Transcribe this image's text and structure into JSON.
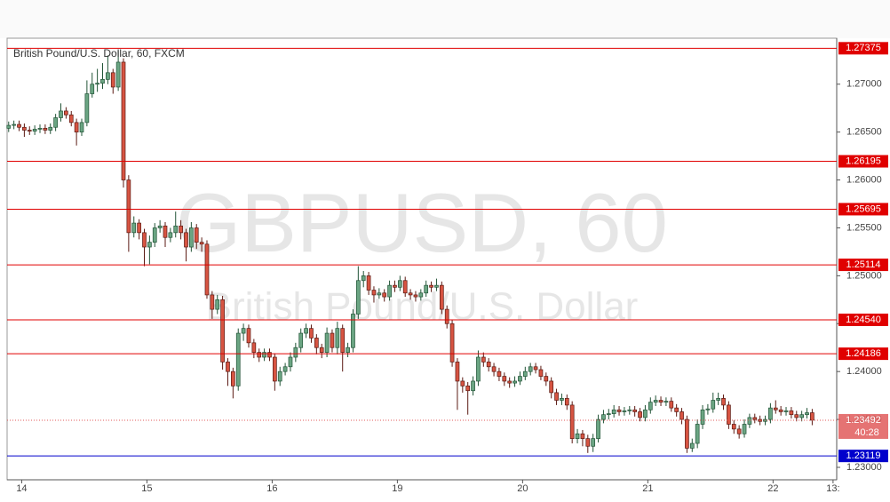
{
  "chart_data": {
    "type": "candlestick",
    "title": "British Pound/U.S. Dollar, 60, FXCM",
    "watermark": "GBPUSD, 60",
    "watermark_subtitle": "British Pound/U.S. Dollar",
    "ylim": [
      1.2287,
      1.2748
    ],
    "yticks": [
      {
        "value": 1.23,
        "label": "1.23000"
      },
      {
        "value": 1.235,
        "label": "1.23500"
      },
      {
        "value": 1.24,
        "label": "1.24000"
      },
      {
        "value": 1.245,
        "label": "1.24500"
      },
      {
        "value": 1.25,
        "label": "1.25000"
      },
      {
        "value": 1.255,
        "label": "1.25500"
      },
      {
        "value": 1.26,
        "label": "1.26000"
      },
      {
        "value": 1.265,
        "label": "1.26500"
      },
      {
        "value": 1.27,
        "label": "1.27000"
      }
    ],
    "xlim": [
      -0.3,
      158.7
    ],
    "xticks": [
      {
        "value": 2.5,
        "label": "14"
      },
      {
        "value": 26.5,
        "label": "15"
      },
      {
        "value": 50.5,
        "label": "16"
      },
      {
        "value": 74.5,
        "label": "19"
      },
      {
        "value": 98.5,
        "label": "20"
      },
      {
        "value": 122.5,
        "label": "21"
      },
      {
        "value": 146.5,
        "label": "22"
      },
      {
        "value": 158,
        "label": "13:"
      }
    ],
    "up_color": "#6ba583",
    "down_color": "#d75442",
    "levels": [
      {
        "value": 1.27375,
        "color": "#e00000"
      },
      {
        "value": 1.26195,
        "color": "#e00000"
      },
      {
        "value": 1.25695,
        "color": "#e00000"
      },
      {
        "value": 1.25114,
        "color": "#e00000"
      },
      {
        "value": 1.2454,
        "label": "1.24540",
        "color": "#e00000"
      },
      {
        "value": 1.24186,
        "color": "#e00000"
      },
      {
        "value": 1.23119,
        "color": "#0000cc"
      }
    ],
    "last": {
      "value": 1.23492,
      "countdown": "40:28",
      "color": "#e05a5a"
    },
    "open": [
      1.2654,
      1.2657,
      1.2658,
      1.2655,
      1.2652,
      1.2651,
      1.2653,
      1.2654,
      1.2652,
      1.2655,
      1.2665,
      1.2672,
      1.2668,
      1.266,
      1.265,
      1.266,
      1.269,
      1.27,
      1.2701,
      1.2705,
      1.2712,
      1.2697,
      1.2723,
      1.26,
      1.2545,
      1.2555,
      1.2545,
      1.253,
      1.2535,
      1.255,
      1.2552,
      1.254,
      1.2545,
      1.2552,
      1.2545,
      1.253,
      1.255,
      1.2535,
      1.2533,
      1.248,
      1.2465,
      1.2475,
      1.241,
      1.24,
      1.2385,
      1.244,
      1.2445,
      1.243,
      1.242,
      1.2415,
      1.242,
      1.2415,
      1.239,
      1.24,
      1.2405,
      1.2415,
      1.2425,
      1.244,
      1.2445,
      1.2435,
      1.2425,
      1.242,
      1.244,
      1.2425,
      1.2445,
      1.242,
      1.2425,
      1.246,
      1.2495,
      1.25,
      1.2485,
      1.248,
      1.2482,
      1.2478,
      1.249,
      1.2488,
      1.2495,
      1.2482,
      1.248,
      1.2478,
      1.2482,
      1.249,
      1.2488,
      1.249,
      1.2465,
      1.245,
      1.241,
      1.239,
      1.2385,
      1.238,
      1.239,
      1.2415,
      1.241,
      1.2405,
      1.24,
      1.2395,
      1.239,
      1.2388,
      1.239,
      1.2395,
      1.24,
      1.2405,
      1.2402,
      1.2395,
      1.239,
      1.2378,
      1.237,
      1.2372,
      1.2365,
      1.233,
      1.2335,
      1.233,
      1.2322,
      1.233,
      1.235,
      1.2355,
      1.2356,
      1.236,
      1.2358,
      1.2359,
      1.236,
      1.2358,
      1.2352,
      1.236,
      1.2368,
      1.237,
      1.2368,
      1.2369,
      1.2362,
      1.2358,
      1.235,
      1.232,
      1.2325,
      1.2345,
      1.236,
      1.2361,
      1.237,
      1.2372,
      1.2365,
      1.2345,
      1.234,
      1.2335,
      1.2345,
      1.2352,
      1.235,
      1.2348,
      1.235,
      1.2362,
      1.236,
      1.2358,
      1.2359,
      1.2355,
      1.2352,
      1.2355,
      1.2357
    ],
    "high": [
      1.2661,
      1.2662,
      1.2662,
      1.2659,
      1.2656,
      1.2657,
      1.2658,
      1.2658,
      1.2659,
      1.2669,
      1.268,
      1.2676,
      1.2672,
      1.2664,
      1.2664,
      1.2704,
      1.2712,
      1.2716,
      1.2722,
      1.273,
      1.2716,
      1.2735,
      1.2727,
      1.2605,
      1.2562,
      1.2559,
      1.2549,
      1.2542,
      1.2555,
      1.2558,
      1.2556,
      1.255,
      1.2567,
      1.2558,
      1.2549,
      1.2556,
      1.2554,
      1.254,
      1.2537,
      1.2484,
      1.248,
      1.2479,
      1.2414,
      1.2404,
      1.2445,
      1.245,
      1.2449,
      1.2434,
      1.2424,
      1.2424,
      1.2424,
      1.2419,
      1.2405,
      1.2409,
      1.242,
      1.243,
      1.2445,
      1.245,
      1.2449,
      1.2439,
      1.2429,
      1.2446,
      1.2444,
      1.2452,
      1.2449,
      1.243,
      1.2465,
      1.251,
      1.2505,
      1.2504,
      1.2489,
      1.2487,
      1.2486,
      1.2495,
      1.2495,
      1.25,
      1.2499,
      1.2486,
      1.2484,
      1.2486,
      1.2495,
      1.2494,
      1.2497,
      1.2494,
      1.2469,
      1.2454,
      1.2414,
      1.2394,
      1.2389,
      1.2395,
      1.2422,
      1.242,
      1.2414,
      1.2409,
      1.2404,
      1.2399,
      1.2394,
      1.2395,
      1.24,
      1.2405,
      1.2409,
      1.2409,
      1.2406,
      1.2399,
      1.2394,
      1.2382,
      1.2377,
      1.2376,
      1.2369,
      1.234,
      1.2339,
      1.2334,
      1.2335,
      1.2355,
      1.236,
      1.2361,
      1.2365,
      1.2364,
      1.2363,
      1.2364,
      1.2364,
      1.2362,
      1.2365,
      1.2373,
      1.2375,
      1.2374,
      1.2373,
      1.2373,
      1.2366,
      1.2362,
      1.2354,
      1.233,
      1.235,
      1.2365,
      1.2366,
      1.2378,
      1.2378,
      1.2376,
      1.2369,
      1.2349,
      1.2344,
      1.235,
      1.2356,
      1.2356,
      1.2354,
      1.2354,
      1.2367,
      1.237,
      1.2364,
      1.2363,
      1.2363,
      1.2359,
      1.2359,
      1.2362,
      1.2361
    ],
    "low": [
      1.265,
      1.2653,
      1.2651,
      1.2645,
      1.2647,
      1.2647,
      1.2649,
      1.2648,
      1.2648,
      1.2651,
      1.2661,
      1.2664,
      1.2656,
      1.2636,
      1.2646,
      1.2656,
      1.2686,
      1.2692,
      1.2695,
      1.27,
      1.269,
      1.2693,
      1.2592,
      1.2525,
      1.254,
      1.2538,
      1.251,
      1.2512,
      1.253,
      1.2545,
      1.253,
      1.2535,
      1.254,
      1.2538,
      1.2515,
      1.2525,
      1.2528,
      1.2525,
      1.2476,
      1.2455,
      1.246,
      1.2402,
      1.2385,
      1.2372,
      1.238,
      1.2432,
      1.2425,
      1.2414,
      1.241,
      1.2411,
      1.2411,
      1.238,
      1.2385,
      1.2396,
      1.24,
      1.241,
      1.242,
      1.2435,
      1.243,
      1.2418,
      1.2414,
      1.2415,
      1.242,
      1.2418,
      1.24,
      1.2415,
      1.242,
      1.2455,
      1.2488,
      1.248,
      1.2472,
      1.2476,
      1.2473,
      1.2474,
      1.2483,
      1.2484,
      1.2478,
      1.2475,
      1.2473,
      1.2474,
      1.2478,
      1.2483,
      1.2484,
      1.246,
      1.2445,
      1.2405,
      1.236,
      1.2378,
      1.2355,
      1.2375,
      1.2385,
      1.2405,
      1.24,
      1.2395,
      1.239,
      1.2385,
      1.2383,
      1.2384,
      1.2386,
      1.2391,
      1.2396,
      1.2398,
      1.2391,
      1.2385,
      1.2372,
      1.2365,
      1.2365,
      1.236,
      1.2325,
      1.2325,
      1.2322,
      1.2315,
      1.2316,
      1.2326,
      1.2346,
      1.235,
      1.2352,
      1.2354,
      1.2354,
      1.2355,
      1.2353,
      1.2348,
      1.2348,
      1.2356,
      1.2364,
      1.2364,
      1.2364,
      1.2358,
      1.2353,
      1.2345,
      1.2315,
      1.2316,
      1.232,
      1.234,
      1.2355,
      1.2357,
      1.2365,
      1.236,
      1.234,
      1.2335,
      1.233,
      1.2331,
      1.2341,
      1.2346,
      1.2344,
      1.2344,
      1.2346,
      1.2356,
      1.2354,
      1.2354,
      1.2351,
      1.2348,
      1.2348,
      1.2351,
      1.2344
    ],
    "close": [
      1.2657,
      1.2658,
      1.2655,
      1.2652,
      1.2651,
      1.2653,
      1.2654,
      1.2652,
      1.2655,
      1.2665,
      1.2672,
      1.2668,
      1.266,
      1.265,
      1.266,
      1.269,
      1.27,
      1.2701,
      1.2705,
      1.2712,
      1.2697,
      1.2723,
      1.26,
      1.2545,
      1.2555,
      1.2545,
      1.253,
      1.2535,
      1.255,
      1.2552,
      1.254,
      1.2545,
      1.2552,
      1.2545,
      1.253,
      1.255,
      1.2535,
      1.2533,
      1.248,
      1.2465,
      1.2475,
      1.241,
      1.24,
      1.2385,
      1.244,
      1.2445,
      1.243,
      1.242,
      1.2415,
      1.242,
      1.2415,
      1.239,
      1.24,
      1.2405,
      1.2415,
      1.2425,
      1.244,
      1.2445,
      1.2435,
      1.2425,
      1.242,
      1.244,
      1.2425,
      1.2445,
      1.242,
      1.2425,
      1.246,
      1.2495,
      1.25,
      1.2485,
      1.248,
      1.2482,
      1.2478,
      1.249,
      1.2488,
      1.2495,
      1.2482,
      1.248,
      1.2478,
      1.2482,
      1.249,
      1.2488,
      1.249,
      1.2465,
      1.245,
      1.241,
      1.239,
      1.2385,
      1.238,
      1.239,
      1.2415,
      1.241,
      1.2405,
      1.24,
      1.2395,
      1.239,
      1.2388,
      1.239,
      1.2395,
      1.24,
      1.2405,
      1.2402,
      1.2395,
      1.239,
      1.2378,
      1.237,
      1.2372,
      1.2365,
      1.233,
      1.2335,
      1.233,
      1.2322,
      1.233,
      1.235,
      1.2355,
      1.2356,
      1.236,
      1.2358,
      1.2359,
      1.236,
      1.2358,
      1.2352,
      1.236,
      1.2368,
      1.237,
      1.2368,
      1.2369,
      1.2362,
      1.2358,
      1.235,
      1.232,
      1.2325,
      1.2345,
      1.236,
      1.2361,
      1.237,
      1.2372,
      1.2365,
      1.2345,
      1.234,
      1.2335,
      1.2345,
      1.2352,
      1.235,
      1.2348,
      1.235,
      1.2362,
      1.236,
      1.2358,
      1.2359,
      1.2355,
      1.2352,
      1.2355,
      1.2357,
      1.23492
    ]
  }
}
